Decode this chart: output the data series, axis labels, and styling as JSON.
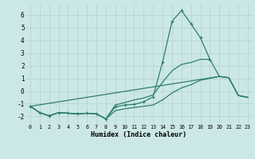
{
  "xlabel": "Humidex (Indice chaleur)",
  "background_color": "#cce8e6",
  "grid_color": "#b8d4d2",
  "line_color": "#2e7d6e",
  "xlim": [
    -0.5,
    23.5
  ],
  "ylim": [
    -2.6,
    6.8
  ],
  "xticks": [
    0,
    1,
    2,
    3,
    4,
    5,
    6,
    7,
    8,
    9,
    10,
    11,
    12,
    13,
    14,
    15,
    16,
    17,
    18,
    19,
    20,
    21,
    22,
    23
  ],
  "yticks": [
    -2,
    -1,
    0,
    1,
    2,
    3,
    4,
    5,
    6
  ],
  "curve_main_x": [
    0,
    1,
    2,
    3,
    4,
    5,
    6,
    7,
    8,
    9,
    10,
    11,
    12,
    13,
    14,
    15,
    16,
    17,
    18,
    19
  ],
  "curve_main_y": [
    -1.2,
    -1.7,
    -1.95,
    -1.7,
    -1.75,
    -1.8,
    -1.75,
    -1.8,
    -2.2,
    -1.25,
    -1.1,
    -1.05,
    -0.85,
    -0.45,
    2.3,
    5.5,
    6.35,
    5.3,
    4.2,
    2.5
  ],
  "curve_upper_x": [
    0,
    1,
    2,
    3,
    4,
    5,
    6,
    7,
    8,
    9,
    10,
    11,
    12,
    13,
    14,
    15,
    16,
    17,
    18,
    19,
    20,
    21,
    22,
    23
  ],
  "curve_upper_y": [
    -1.2,
    -1.7,
    -1.95,
    -1.7,
    -1.75,
    -1.8,
    -1.75,
    -1.8,
    -2.2,
    -1.1,
    -0.9,
    -0.7,
    -0.55,
    -0.3,
    0.7,
    1.6,
    2.1,
    2.25,
    2.5,
    2.5,
    1.15,
    1.05,
    -0.35,
    -0.5
  ],
  "curve_lower_x": [
    0,
    1,
    2,
    3,
    4,
    5,
    6,
    7,
    8,
    9,
    10,
    11,
    12,
    13,
    14,
    15,
    16,
    17,
    18,
    19,
    20,
    21,
    22,
    23
  ],
  "curve_lower_y": [
    -1.2,
    -1.7,
    -1.95,
    -1.7,
    -1.75,
    -1.8,
    -1.75,
    -1.8,
    -2.2,
    -1.55,
    -1.4,
    -1.3,
    -1.2,
    -1.1,
    -0.7,
    -0.15,
    0.25,
    0.5,
    0.85,
    1.0,
    1.15,
    1.05,
    -0.35,
    -0.5
  ],
  "curve_close_x": [
    0,
    20,
    21,
    22,
    23
  ],
  "curve_close_y": [
    -1.2,
    1.15,
    1.05,
    -0.35,
    -0.5
  ]
}
